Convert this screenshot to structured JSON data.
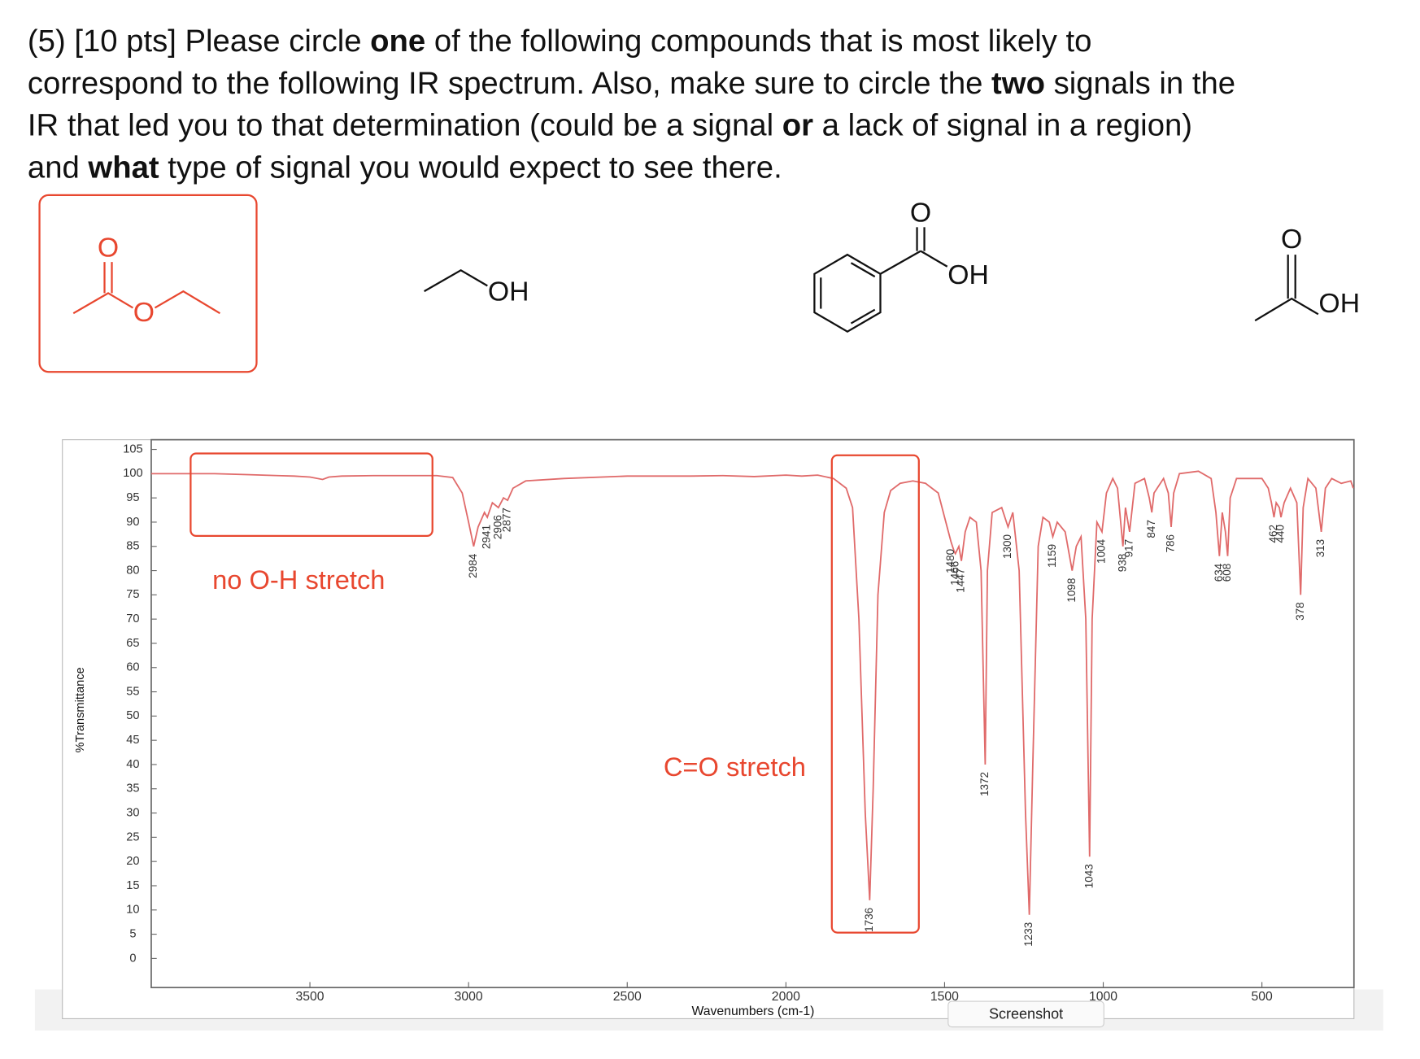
{
  "question": {
    "lines": [
      [
        {
          "text": "(5) [10 pts] Please circle "
        },
        {
          "text": "one",
          "bold": true
        },
        {
          "text": " of the following compounds that is most likely to"
        }
      ],
      [
        {
          "text": "correspond to the following IR spectrum. Also, make sure to circle the "
        },
        {
          "text": "two",
          "bold": true
        },
        {
          "text": " signals in the"
        }
      ],
      [
        {
          "text": "IR that led you to that determination (could be a signal "
        },
        {
          "text": "or",
          "bold": true
        },
        {
          "text": " a lack of signal in a region)"
        }
      ],
      [
        {
          "text": "and "
        },
        {
          "text": "what",
          "bold": true
        },
        {
          "text": " type of signal you would expect to see there."
        }
      ]
    ]
  },
  "compounds": [
    {
      "atoms": [
        "O",
        "O"
      ],
      "circled": true
    },
    {
      "atoms": [
        "OH"
      ]
    },
    {
      "atoms": [
        "O",
        "OH"
      ]
    },
    {
      "atoms": [
        "O",
        "OH"
      ]
    }
  ],
  "chart_data": {
    "type": "line",
    "x_label": "Wavenumbers (cm-1)",
    "y_label": "%Transmittance",
    "xlim": [
      4000,
      210
    ],
    "ylim": [
      -6,
      107
    ],
    "xticks": [
      3500,
      3000,
      2500,
      2000,
      1500,
      1000,
      500
    ],
    "yticks": [
      0,
      5,
      10,
      15,
      20,
      25,
      30,
      35,
      40,
      45,
      50,
      55,
      60,
      65,
      70,
      75,
      80,
      85,
      90,
      95,
      100,
      105
    ],
    "x": [
      4000,
      3900,
      3800,
      3700,
      3600,
      3550,
      3500,
      3460,
      3440,
      3400,
      3300,
      3200,
      3100,
      3050,
      3020,
      3000,
      2984,
      2970,
      2950,
      2941,
      2925,
      2906,
      2890,
      2877,
      2860,
      2820,
      2700,
      2500,
      2300,
      2200,
      2100,
      2000,
      1950,
      1900,
      1850,
      1810,
      1790,
      1770,
      1750,
      1736,
      1725,
      1710,
      1690,
      1670,
      1640,
      1600,
      1560,
      1520,
      1500,
      1480,
      1470,
      1466,
      1455,
      1447,
      1435,
      1420,
      1400,
      1385,
      1372,
      1365,
      1350,
      1320,
      1300,
      1285,
      1265,
      1245,
      1233,
      1222,
      1205,
      1190,
      1170,
      1159,
      1145,
      1120,
      1098,
      1085,
      1070,
      1055,
      1043,
      1035,
      1020,
      1004,
      990,
      970,
      955,
      938,
      930,
      917,
      900,
      870,
      855,
      847,
      840,
      810,
      795,
      786,
      778,
      760,
      700,
      660,
      645,
      634,
      625,
      615,
      608,
      600,
      580,
      530,
      500,
      480,
      470,
      462,
      455,
      445,
      440,
      430,
      410,
      390,
      378,
      370,
      355,
      330,
      313,
      300,
      280,
      250,
      220,
      212
    ],
    "series": [
      {
        "name": "%Transmittance",
        "color": "#e06a6a",
        "values": [
          100,
          100,
          100,
          99.8,
          99.6,
          99.5,
          99.3,
          98.8,
          99.3,
          99.5,
          99.6,
          99.6,
          99.6,
          99.2,
          96,
          90,
          85,
          89,
          92,
          91,
          94,
          93,
          95,
          94.5,
          97,
          98.5,
          99,
          99.5,
          99.5,
          99.6,
          99.4,
          99.7,
          99.5,
          99.7,
          99,
          97,
          93,
          70,
          30,
          12,
          35,
          75,
          92,
          96.5,
          98,
          98.5,
          98,
          96,
          91,
          86,
          84,
          83.5,
          85,
          82,
          88,
          91,
          90,
          80,
          40,
          80,
          92,
          93,
          89,
          92,
          80,
          30,
          9,
          40,
          85,
          91,
          90,
          87,
          90,
          88,
          80,
          85,
          87,
          70,
          21,
          70,
          90,
          88,
          96,
          99,
          97,
          85,
          93,
          88,
          98,
          99,
          95,
          92,
          96,
          99,
          96,
          89,
          96,
          100,
          100.5,
          99,
          92,
          83,
          92,
          88,
          83,
          95,
          99,
          99,
          99,
          97,
          94,
          91,
          94,
          93,
          91,
          94,
          97,
          94,
          75,
          93,
          99,
          97,
          88,
          97,
          99,
          98,
          98.5,
          97
        ]
      }
    ],
    "peak_labels": [
      2984,
      2941,
      2906,
      2877,
      1736,
      1480,
      1466,
      1447,
      1372,
      1300,
      1233,
      1159,
      1098,
      1043,
      1004,
      938,
      917,
      847,
      786,
      634,
      608,
      462,
      440,
      378,
      313
    ],
    "annotations": [
      "no O-H stretch",
      "C=O stretch"
    ],
    "tooltip": "Screenshot"
  }
}
